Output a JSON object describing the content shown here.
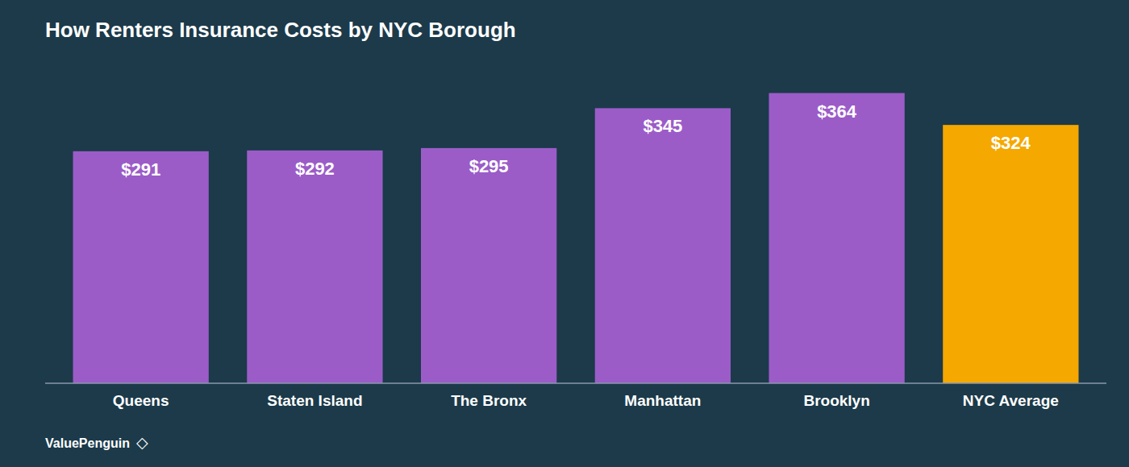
{
  "chart_data": {
    "type": "bar",
    "title": "How Renters Insurance Costs by NYC Borough",
    "categories": [
      "Queens",
      "Staten Island",
      "The Bronx",
      "Manhattan",
      "Brooklyn",
      "NYC Average"
    ],
    "values": [
      291,
      292,
      295,
      345,
      364,
      324
    ],
    "value_labels": [
      "$291",
      "$292",
      "$295",
      "$345",
      "$364",
      "$324"
    ],
    "colors": [
      "#9B5CC8",
      "#9B5CC8",
      "#9B5CC8",
      "#9B5CC8",
      "#9B5CC8",
      "#F5A800"
    ],
    "ylim": [
      0,
      410
    ],
    "data_labels": true,
    "grid": false,
    "tick_labels": "x",
    "annotations": [
      "ValuePenguin",
      "◇"
    ]
  }
}
